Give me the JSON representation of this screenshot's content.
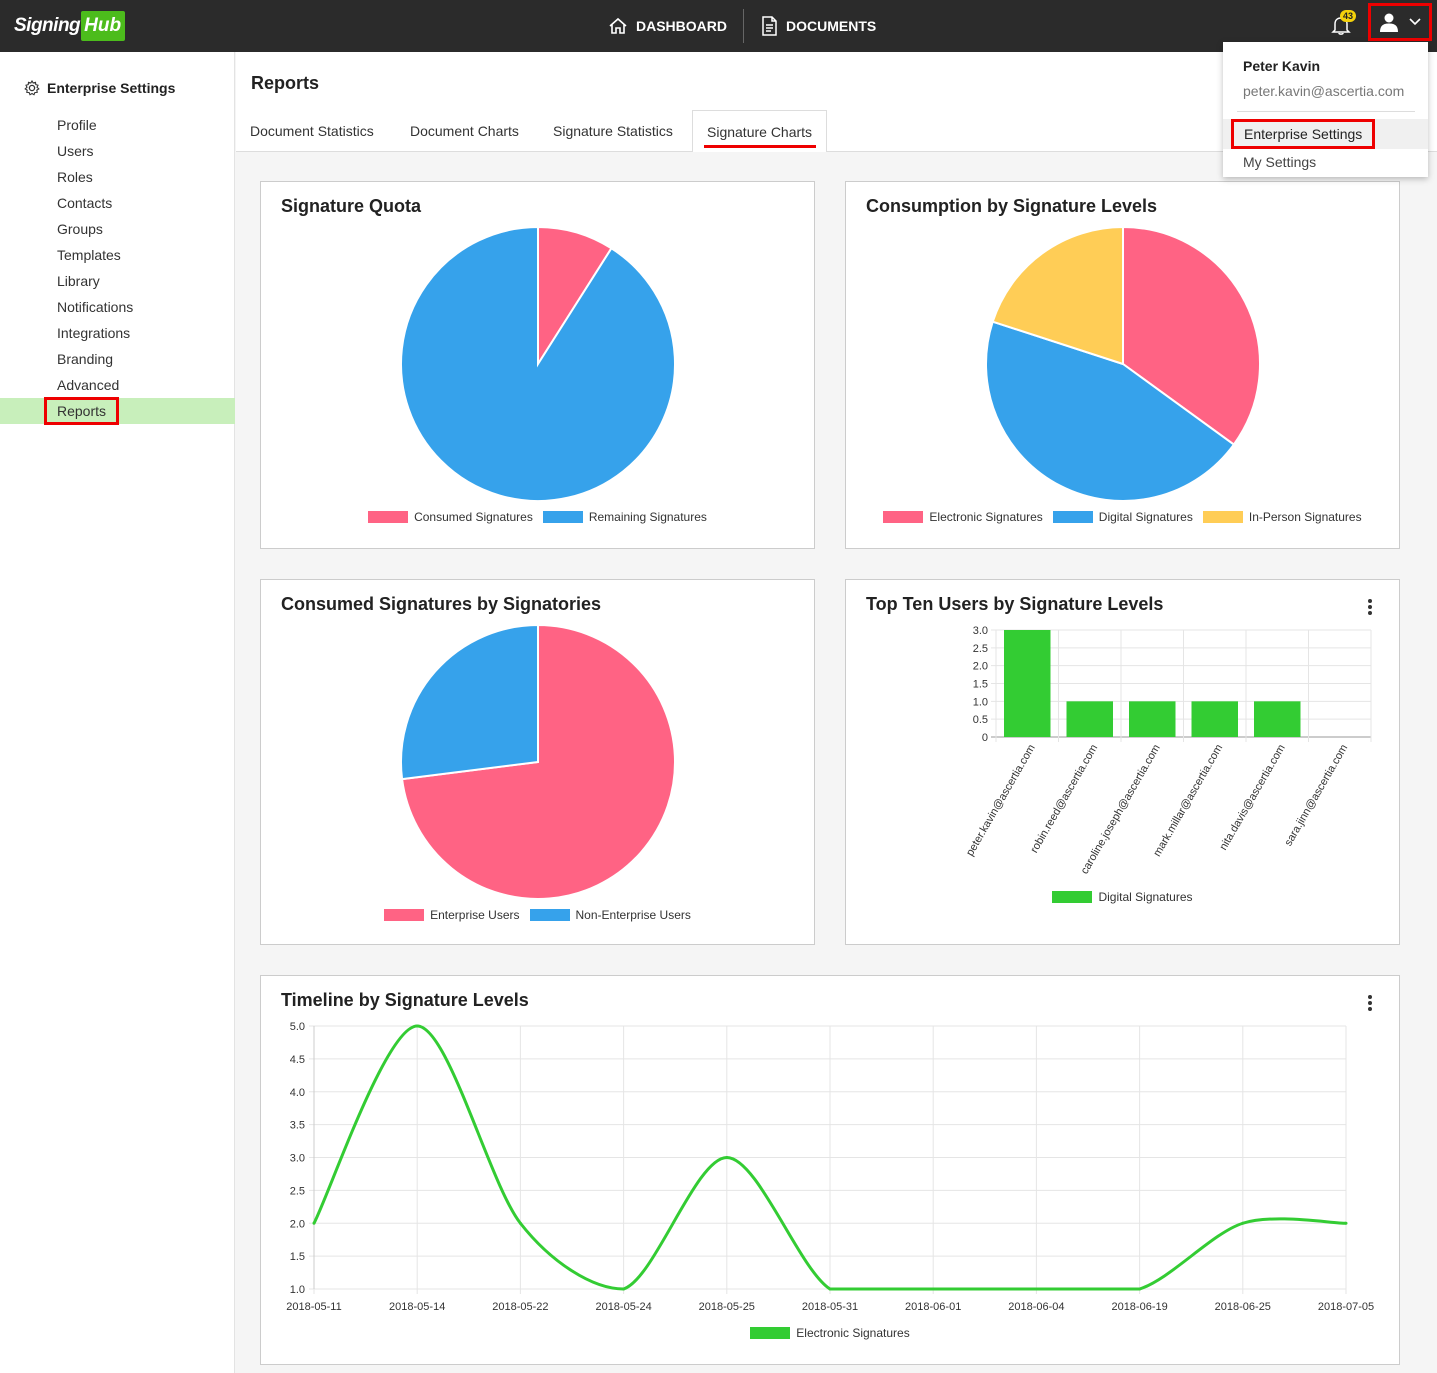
{
  "app": {
    "logo_part1": "Signing",
    "logo_part2": "Hub"
  },
  "nav": {
    "dashboard": "DASHBOARD",
    "documents": "DOCUMENTS",
    "notifications_count": "43"
  },
  "user_menu": {
    "name": "Peter Kavin",
    "email": "peter.kavin@ascertia.com",
    "items": [
      "Enterprise Settings",
      "My Settings"
    ]
  },
  "sidebar": {
    "title": "Enterprise Settings",
    "items": [
      "Profile",
      "Users",
      "Roles",
      "Contacts",
      "Groups",
      "Templates",
      "Library",
      "Notifications",
      "Integrations",
      "Branding",
      "Advanced",
      "Reports"
    ],
    "active": "Reports"
  },
  "page": {
    "title": "Reports",
    "tabs": [
      "Document Statistics",
      "Document Charts",
      "Signature Statistics",
      "Signature Charts"
    ],
    "active_tab": "Signature Charts"
  },
  "colors": {
    "red": "#ff6384",
    "blue": "#36a2eb",
    "yellow": "#ffcd56",
    "green": "#33cc33"
  },
  "chart_data": [
    {
      "type": "pie",
      "title": "Signature Quota",
      "categories": [
        "Consumed Signatures",
        "Remaining Signatures"
      ],
      "values": [
        9,
        91
      ],
      "colors": [
        "#ff6384",
        "#36a2eb"
      ]
    },
    {
      "type": "pie",
      "title": "Consumption by Signature Levels",
      "categories": [
        "Electronic Signatures",
        "Digital Signatures",
        "In-Person Signatures"
      ],
      "values": [
        35,
        45,
        20
      ],
      "colors": [
        "#ff6384",
        "#36a2eb",
        "#ffcd56"
      ]
    },
    {
      "type": "pie",
      "title": "Consumed Signatures by Signatories",
      "categories": [
        "Enterprise Users",
        "Non-Enterprise Users"
      ],
      "values": [
        73,
        27
      ],
      "colors": [
        "#ff6384",
        "#36a2eb"
      ]
    },
    {
      "type": "bar",
      "title": "Top Ten Users by Signature Levels",
      "categories": [
        "peter.kavin@ascertia.com",
        "robin.reed@ascertia.com",
        "caroline.joseph@ascertia.com",
        "mark.millar@ascertia.com",
        "nita.davis@ascertia.com",
        "sara.jinn@ascertia.com"
      ],
      "series": [
        {
          "name": "Digital Signatures",
          "values": [
            3,
            1,
            1,
            1,
            1,
            0
          ]
        }
      ],
      "yticks": [
        "0",
        "0.5",
        "1.0",
        "1.5",
        "2.0",
        "2.5",
        "3.0"
      ],
      "ylim": [
        0,
        3
      ],
      "grid": true,
      "legend": "bottom"
    },
    {
      "type": "line",
      "title": "Timeline by Signature Levels",
      "categories": [
        "2018-05-11",
        "2018-05-14",
        "2018-05-22",
        "2018-05-24",
        "2018-05-25",
        "2018-05-31",
        "2018-06-01",
        "2018-06-04",
        "2018-06-19",
        "2018-06-25",
        "2018-07-05"
      ],
      "series": [
        {
          "name": "Electronic Signatures",
          "values": [
            2,
            5,
            2,
            1,
            3,
            1,
            1,
            1,
            1,
            2,
            2
          ]
        }
      ],
      "yticks": [
        "1.0",
        "1.5",
        "2.0",
        "2.5",
        "3.0",
        "3.5",
        "4.0",
        "4.5",
        "5.0"
      ],
      "ylim": [
        1,
        5
      ],
      "grid": true,
      "legend": "bottom"
    }
  ]
}
